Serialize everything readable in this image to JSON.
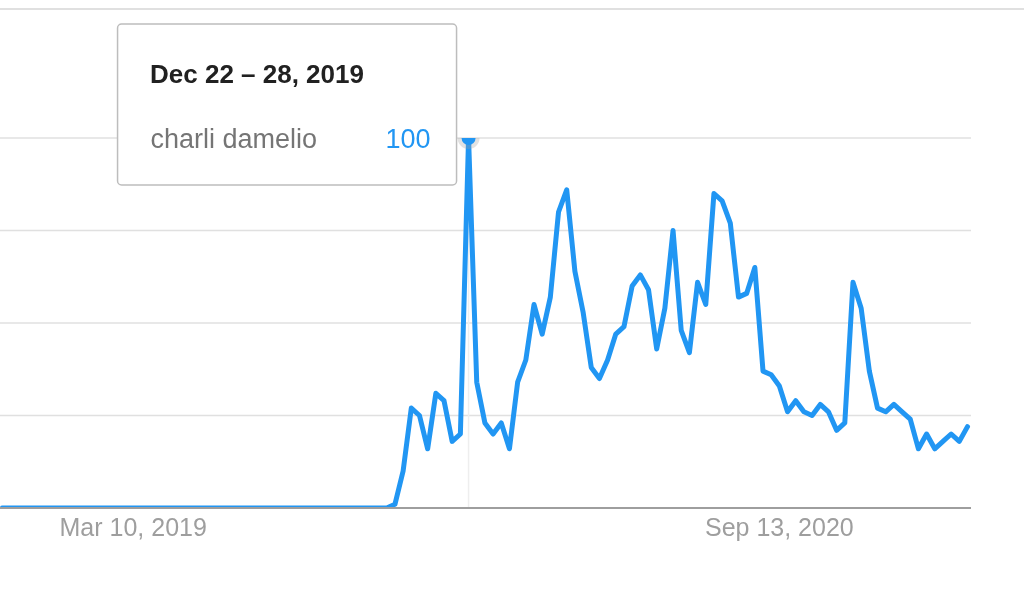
{
  "chart_data": {
    "type": "line",
    "x": [
      "2018-11-18",
      "2019-10-13",
      "2019-10-20",
      "2019-10-27",
      "2019-11-03",
      "2019-11-10",
      "2019-11-17",
      "2019-11-24",
      "2019-12-01",
      "2019-12-08",
      "2019-12-15",
      "2019-12-22",
      "2019-12-29",
      "2020-01-05",
      "2020-01-12",
      "2020-01-19",
      "2020-01-26",
      "2020-02-02",
      "2020-02-09",
      "2020-02-16",
      "2020-02-23",
      "2020-03-01",
      "2020-03-08",
      "2020-03-15",
      "2020-03-22",
      "2020-03-29",
      "2020-04-05",
      "2020-04-12",
      "2020-04-19",
      "2020-04-26",
      "2020-05-03",
      "2020-05-10",
      "2020-05-17",
      "2020-05-24",
      "2020-05-31",
      "2020-06-07",
      "2020-06-14",
      "2020-06-21",
      "2020-06-28",
      "2020-07-05",
      "2020-07-12",
      "2020-07-19",
      "2020-07-26",
      "2020-08-02",
      "2020-08-09",
      "2020-08-16",
      "2020-08-23",
      "2020-08-30",
      "2020-09-06",
      "2020-09-13",
      "2020-09-20",
      "2020-09-27",
      "2020-10-04",
      "2020-10-11",
      "2020-10-18",
      "2020-10-25",
      "2020-11-01",
      "2020-11-08",
      "2020-11-15",
      "2020-11-22",
      "2020-11-29",
      "2020-12-06",
      "2020-12-13",
      "2020-12-20",
      "2020-12-27",
      "2021-01-03",
      "2021-01-10",
      "2021-01-17",
      "2021-01-24",
      "2021-01-31",
      "2021-02-07",
      "2021-02-14",
      "2021-02-21"
    ],
    "series": [
      {
        "name": "charli damelio",
        "color": "#2196f3",
        "values": [
          0,
          0,
          1,
          10,
          27,
          25,
          16,
          31,
          29,
          18,
          20,
          100,
          34,
          23,
          20,
          23,
          16,
          34,
          40,
          55,
          47,
          57,
          80,
          86,
          64,
          53,
          38,
          35,
          40,
          47,
          49,
          60,
          63,
          59,
          43,
          54,
          75,
          48,
          42,
          61,
          55,
          85,
          83,
          77,
          57,
          58,
          65,
          37,
          36,
          33,
          26,
          29,
          26,
          25,
          28,
          26,
          21,
          23,
          61,
          54,
          37,
          27,
          26,
          28,
          26,
          24,
          16,
          20,
          16,
          18,
          20,
          18,
          22
        ],
        "value_labels": [
          null,
          null,
          null,
          null,
          null,
          null,
          null,
          null,
          null,
          null,
          null,
          "100",
          null,
          null,
          null,
          null,
          null,
          null,
          null,
          null,
          null,
          null,
          null,
          null,
          null,
          null,
          null,
          null,
          null,
          null,
          null,
          null,
          null,
          null,
          null,
          null,
          null,
          null,
          null,
          null,
          null,
          null,
          null,
          null,
          null,
          null,
          null,
          null,
          null,
          null,
          null,
          null,
          null,
          null,
          null,
          null,
          null,
          null,
          null,
          null,
          null,
          null,
          null,
          null,
          null,
          null,
          null,
          null,
          null,
          null,
          null,
          null,
          null
        ]
      },
      {
        "type": "scatter",
        "color": "#2196f3",
        "marker": "circle",
        "x": [
          "2019-12-22"
        ],
        "values": [
          100
        ]
      }
    ],
    "xlim": [
      "2018-11-16",
      "2021-02-24"
    ],
    "xticks": [
      {
        "value": "2019-03-10",
        "label": "Mar 10, 2019"
      },
      {
        "value": "2020-09-13",
        "label": "Sep 13, 2020"
      }
    ],
    "ylim": [
      0,
      100
    ],
    "yticks": [
      {
        "value": 0,
        "label": null
      },
      {
        "value": 25,
        "label": null
      },
      {
        "value": 50,
        "label": null
      },
      {
        "value": 75,
        "label": null
      },
      {
        "value": 100,
        "label": null
      }
    ],
    "tick_labels": "x",
    "grid": "y",
    "line_style": "solid",
    "annotations": [
      "Dec 22 – 28, 2019"
    ],
    "ref_lines": [
      {
        "axis": "x",
        "value": "2019-12-22",
        "color": "#eeeeee"
      }
    ]
  }
}
